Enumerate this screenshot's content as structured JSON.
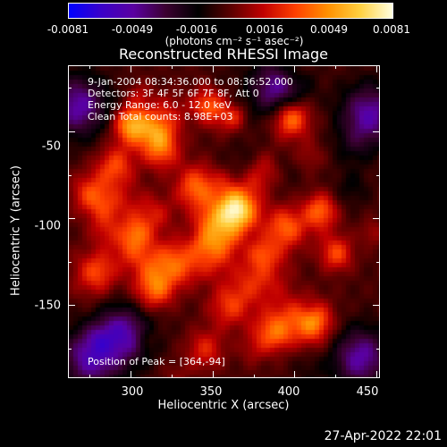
{
  "colorbar": {
    "ticks": [
      "-0.0081",
      "-0.0049",
      "-0.0016",
      "0.0016",
      "0.0049",
      "0.0081"
    ],
    "units_label": "(photons cm⁻² s⁻¹ asec⁻²)",
    "stops": [
      "#0000ff",
      "#3a00c8",
      "#5a00a0",
      "#3b0030",
      "#000000",
      "#5a0000",
      "#c00000",
      "#ff4000",
      "#ff9000",
      "#ffd040",
      "#ffffe0"
    ]
  },
  "chart_data": {
    "type": "heatmap",
    "title": "Reconstructed RHESSI Image",
    "xlabel": "Heliocentric X (arcsec)",
    "ylabel": "Heliocentric Y (arcsec)",
    "xlim": [
      262,
      452
    ],
    "ylim": [
      -192,
      -12
    ],
    "x_ticks": [
      "300",
      "350",
      "400",
      "450"
    ],
    "y_ticks": [
      "-50",
      "-100",
      "-150"
    ],
    "value_range": [
      -0.0081,
      0.0081
    ],
    "peak_position": [
      364,
      -94
    ],
    "annotations": [
      "9-Jan-2004 08:34:36.000 to 08:36:52.000",
      "Detectors: 3F 4F 5F 6F 7F 8F, Att 0",
      "Energy Range: 6.0 - 12.0 keV",
      "Clean     Total counts: 8.98E+03"
    ],
    "peak_label": "Position of Peak = [364,-94]"
  },
  "footer": {
    "timestamp": "27-Apr-2022 22:01"
  }
}
